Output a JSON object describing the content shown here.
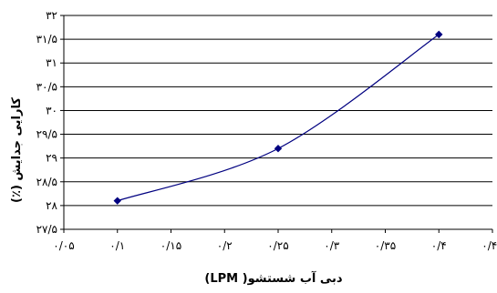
{
  "chart_data": {
    "type": "line",
    "title": "",
    "xlabel": "دبی آب شستشو( LPM)",
    "ylabel": "کارایی جدایش (٪)",
    "xlim": [
      0.05,
      0.45
    ],
    "ylim": [
      27.5,
      32
    ],
    "x_ticks": [
      0.05,
      0.1,
      0.15,
      0.2,
      0.25,
      0.3,
      0.35,
      0.4,
      0.45
    ],
    "x_tick_labels": [
      "۰/۰۵",
      "۰/۱",
      "۰/۱۵",
      "۰/۲",
      "۰/۲۵",
      "۰/۳",
      "۰/۳۵",
      "۰/۴",
      "۰/۴۵"
    ],
    "y_ticks": [
      27.5,
      28,
      28.5,
      29,
      29.5,
      30,
      30.5,
      31,
      31.5,
      32
    ],
    "y_tick_labels": [
      "۲۷/۵",
      "۲۸",
      "۲۸/۵",
      "۲۹",
      "۲۹/۵",
      "۳۰",
      "۳۰/۵",
      "۳۱",
      "۳۱/۵",
      "۳۲"
    ],
    "grid": "horizontal",
    "legend": "none",
    "series": [
      {
        "x": [
          0.1,
          0.25,
          0.4
        ],
        "values": [
          28.1,
          29.2,
          31.6
        ],
        "color": "#000080",
        "marker": "diamond",
        "smooth": true
      }
    ]
  }
}
